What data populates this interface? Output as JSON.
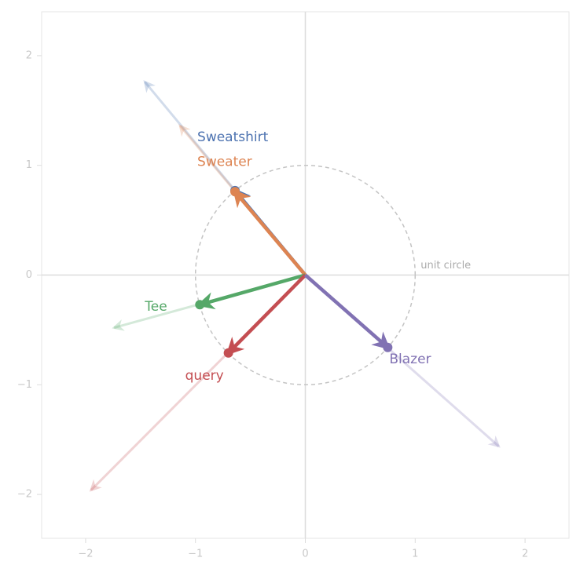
{
  "chart_data": {
    "type": "vector",
    "xlim": [
      -2.4,
      2.4
    ],
    "ylim": [
      -2.4,
      2.4
    ],
    "xticks": [
      {
        "value": -2,
        "label": "−2"
      },
      {
        "value": -1,
        "label": "−1"
      },
      0,
      1,
      2
    ],
    "yticks": [
      {
        "value": -2,
        "label": "−2"
      },
      {
        "value": -1,
        "label": "−1"
      },
      0,
      1,
      2
    ],
    "circle_label": "unit circle",
    "vectors": [
      {
        "name": "Sweatshirt",
        "color": "#4c72b0",
        "original": [
          -1.46,
          1.76
        ],
        "normalized": [
          -0.64,
          0.77
        ]
      },
      {
        "name": "Sweater",
        "color": "#dd8452",
        "original": [
          -1.14,
          1.36
        ],
        "normalized": [
          -0.64,
          0.76
        ]
      },
      {
        "name": "Tee",
        "color": "#55a868",
        "original": [
          -1.74,
          -0.48
        ],
        "normalized": [
          -0.96,
          -0.27
        ]
      },
      {
        "name": "query",
        "color": "#c44e52",
        "original": [
          -1.95,
          -1.96
        ],
        "normalized": [
          -0.7,
          -0.71
        ]
      },
      {
        "name": "Blazer",
        "color": "#8172b3",
        "original": [
          1.76,
          -1.56
        ],
        "normalized": [
          0.75,
          -0.66
        ]
      }
    ]
  }
}
